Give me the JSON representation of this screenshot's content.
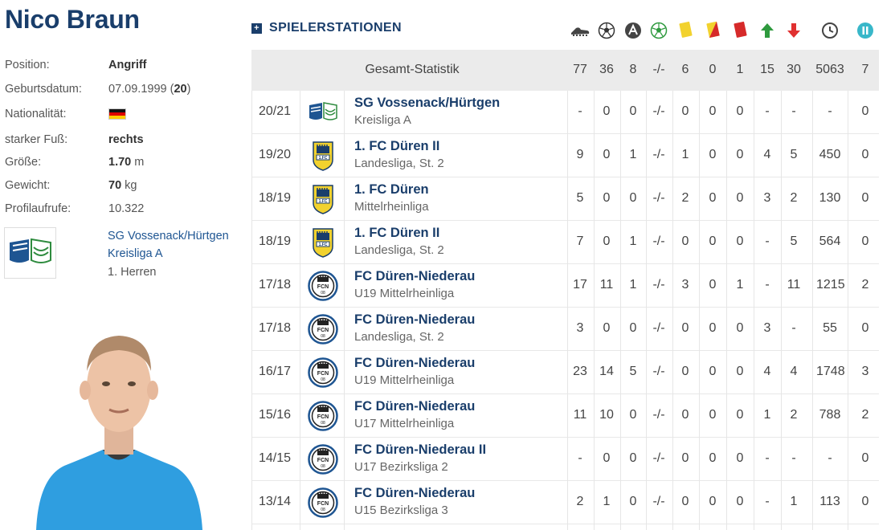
{
  "player": {
    "name": "Nico Braun",
    "position_label": "Position:",
    "position": "Angriff",
    "birth_label": "Geburtsdatum:",
    "birth_date": "07.09.1999",
    "age_open": " (",
    "age": "20",
    "age_close": ")",
    "nationality_label": "Nationalität:",
    "foot_label": "starker Fuß:",
    "foot": "rechts",
    "height_label": "Größe:",
    "height": "1.70",
    "height_unit": " m",
    "weight_label": "Gewicht:",
    "weight": "70",
    "weight_unit": " kg",
    "views_label": "Profilaufrufe:",
    "views": "10.322",
    "club": "SG Vossenack/Hürtgen",
    "club_league": "Kreisliga A",
    "club_team": "1. Herren"
  },
  "stats": {
    "title": "SPIELERSTATIONEN",
    "icons": [
      "boot-icon",
      "ball-icon",
      "assist-icon",
      "green-ball-icon",
      "yellow-card-icon",
      "yellow-red-card-icon",
      "red-card-icon",
      "sub-in-icon",
      "sub-out-icon",
      "clock-icon",
      "pause-icon"
    ],
    "total_label": "Gesamt-Statistik",
    "totals": [
      "77",
      "36",
      "8",
      "-/-",
      "6",
      "0",
      "1",
      "15",
      "30",
      "5063",
      "7"
    ],
    "rows": [
      {
        "season": "20/21",
        "club": "SG Vossenack/Hürtgen",
        "league": "Kreisliga A",
        "logo": "vossenack",
        "values": [
          "-",
          "0",
          "0",
          "-/-",
          "0",
          "0",
          "0",
          "-",
          "-",
          "-",
          "0"
        ]
      },
      {
        "season": "19/20",
        "club": "1. FC Düren II",
        "league": "Landesliga, St. 2",
        "logo": "fcdueren",
        "values": [
          "9",
          "0",
          "1",
          "-/-",
          "1",
          "0",
          "0",
          "4",
          "5",
          "450",
          "0"
        ]
      },
      {
        "season": "18/19",
        "club": "1. FC Düren",
        "league": "Mittelrheinliga",
        "logo": "fcdueren",
        "values": [
          "5",
          "0",
          "0",
          "-/-",
          "2",
          "0",
          "0",
          "3",
          "2",
          "130",
          "0"
        ]
      },
      {
        "season": "18/19",
        "club": "1. FC Düren II",
        "league": "Landesliga, St. 2",
        "logo": "fcdueren",
        "values": [
          "7",
          "0",
          "1",
          "-/-",
          "0",
          "0",
          "0",
          "-",
          "5",
          "564",
          "0"
        ]
      },
      {
        "season": "17/18",
        "club": "FC Düren-Niederau",
        "league": "U19 Mittelrheinliga",
        "logo": "niederau",
        "values": [
          "17",
          "11",
          "1",
          "-/-",
          "3",
          "0",
          "1",
          "-",
          "11",
          "1215",
          "2"
        ]
      },
      {
        "season": "17/18",
        "club": "FC Düren-Niederau",
        "league": "Landesliga, St. 2",
        "logo": "niederau",
        "values": [
          "3",
          "0",
          "0",
          "-/-",
          "0",
          "0",
          "0",
          "3",
          "-",
          "55",
          "0"
        ]
      },
      {
        "season": "16/17",
        "club": "FC Düren-Niederau",
        "league": "U19 Mittelrheinliga",
        "logo": "niederau",
        "values": [
          "23",
          "14",
          "5",
          "-/-",
          "0",
          "0",
          "0",
          "4",
          "4",
          "1748",
          "3"
        ]
      },
      {
        "season": "15/16",
        "club": "FC Düren-Niederau",
        "league": "U17 Mittelrheinliga",
        "logo": "niederau",
        "values": [
          "11",
          "10",
          "0",
          "-/-",
          "0",
          "0",
          "0",
          "1",
          "2",
          "788",
          "2"
        ]
      },
      {
        "season": "14/15",
        "club": "FC Düren-Niederau II",
        "league": "U17 Bezirksliga 2",
        "logo": "niederau",
        "values": [
          "-",
          "0",
          "0",
          "-/-",
          "0",
          "0",
          "0",
          "-",
          "-",
          "-",
          "0"
        ]
      },
      {
        "season": "13/14",
        "club": "FC Düren-Niederau",
        "league": "U15 Bezirksliga 3",
        "logo": "niederau",
        "values": [
          "2",
          "1",
          "0",
          "-/-",
          "0",
          "0",
          "0",
          "-",
          "1",
          "113",
          "0"
        ]
      }
    ]
  },
  "colors": {
    "primary": "#1a3e6b",
    "link": "#1e5592",
    "header_bg": "#ebebeb",
    "jersey": "#2f9ee0"
  }
}
